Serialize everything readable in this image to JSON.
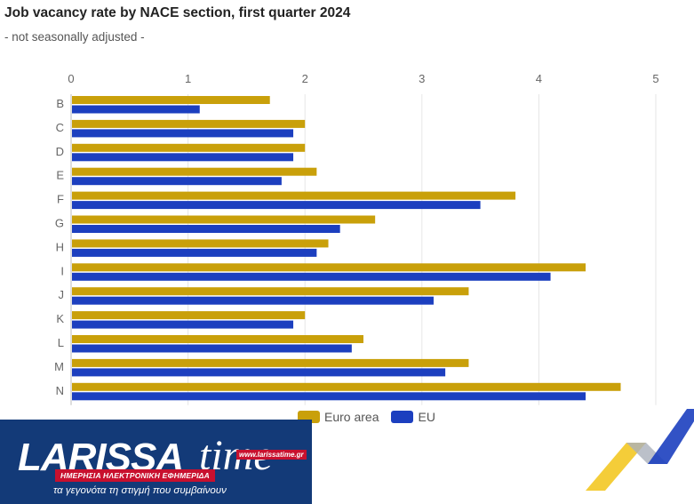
{
  "chart_data": {
    "type": "bar",
    "orientation": "horizontal",
    "title": "Job vacancy rate by NACE section, first quarter 2024",
    "subtitle": "- not seasonally adjusted -",
    "categories": [
      "B",
      "C",
      "D",
      "E",
      "F",
      "G",
      "H",
      "I",
      "J",
      "K",
      "L",
      "M",
      "N"
    ],
    "series": [
      {
        "name": "Euro area",
        "color": "#c9a00a",
        "values": [
          1.7,
          2.0,
          2.0,
          2.1,
          3.8,
          2.6,
          2.2,
          4.4,
          3.4,
          2.0,
          2.5,
          3.4,
          4.7
        ]
      },
      {
        "name": "EU",
        "color": "#1c3fbf",
        "values": [
          1.1,
          1.9,
          1.9,
          1.8,
          3.5,
          2.3,
          2.1,
          4.1,
          3.1,
          1.9,
          2.4,
          3.2,
          4.4
        ]
      }
    ],
    "xlim": [
      0,
      5
    ],
    "xticks": [
      "0",
      "1",
      "2",
      "3",
      "4",
      "5"
    ],
    "xaxis_position": "top",
    "grid": true,
    "legend_position": "bottom"
  },
  "logo": {
    "brand": "LARISSA",
    "brand_suffix": "time",
    "url": "www.larissatime.gr",
    "strip": "ΗΜΕΡΗΣΙΑ ΗΛΕΚΤΡΟΝΙΚΗ ΕΦΗΜΕΡΙΔΑ",
    "slogan": "τα γεγονότα τη στιγμή που συμβαίνουν"
  }
}
